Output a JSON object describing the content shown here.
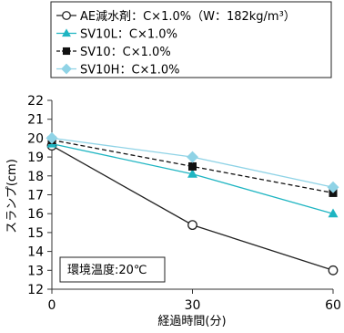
{
  "chart_data": {
    "type": "line",
    "x": [
      0,
      30,
      60
    ],
    "xlabel": "経過時間(分)",
    "ylabel": "スランプ(cm)",
    "xlim": [
      0,
      60
    ],
    "ylim": [
      12,
      22
    ],
    "yticks": [
      12,
      13,
      14,
      15,
      16,
      17,
      18,
      19,
      20,
      21,
      22
    ],
    "xticks": [
      0,
      30,
      60
    ],
    "grid": false,
    "legend_position": "top",
    "annotation": "環境温度:20℃",
    "series": [
      {
        "name": "AE減水剤：C×1.0%（W：182kg/m³）",
        "values": [
          19.6,
          15.4,
          13.0
        ],
        "color": "#222222",
        "marker": "open-circle",
        "dash": false
      },
      {
        "name": "SV10L：C×1.0%",
        "values": [
          19.7,
          18.1,
          16.0
        ],
        "color": "#1fb5c2",
        "marker": "triangle",
        "dash": false
      },
      {
        "name": "SV10：C×1.0%",
        "values": [
          19.9,
          18.5,
          17.1
        ],
        "color": "#111111",
        "marker": "square",
        "dash": true
      },
      {
        "name": "SV10H：C×1.0%",
        "values": [
          20.0,
          19.0,
          17.4
        ],
        "color": "#8fd3e6",
        "marker": "diamond",
        "dash": false
      }
    ]
  }
}
